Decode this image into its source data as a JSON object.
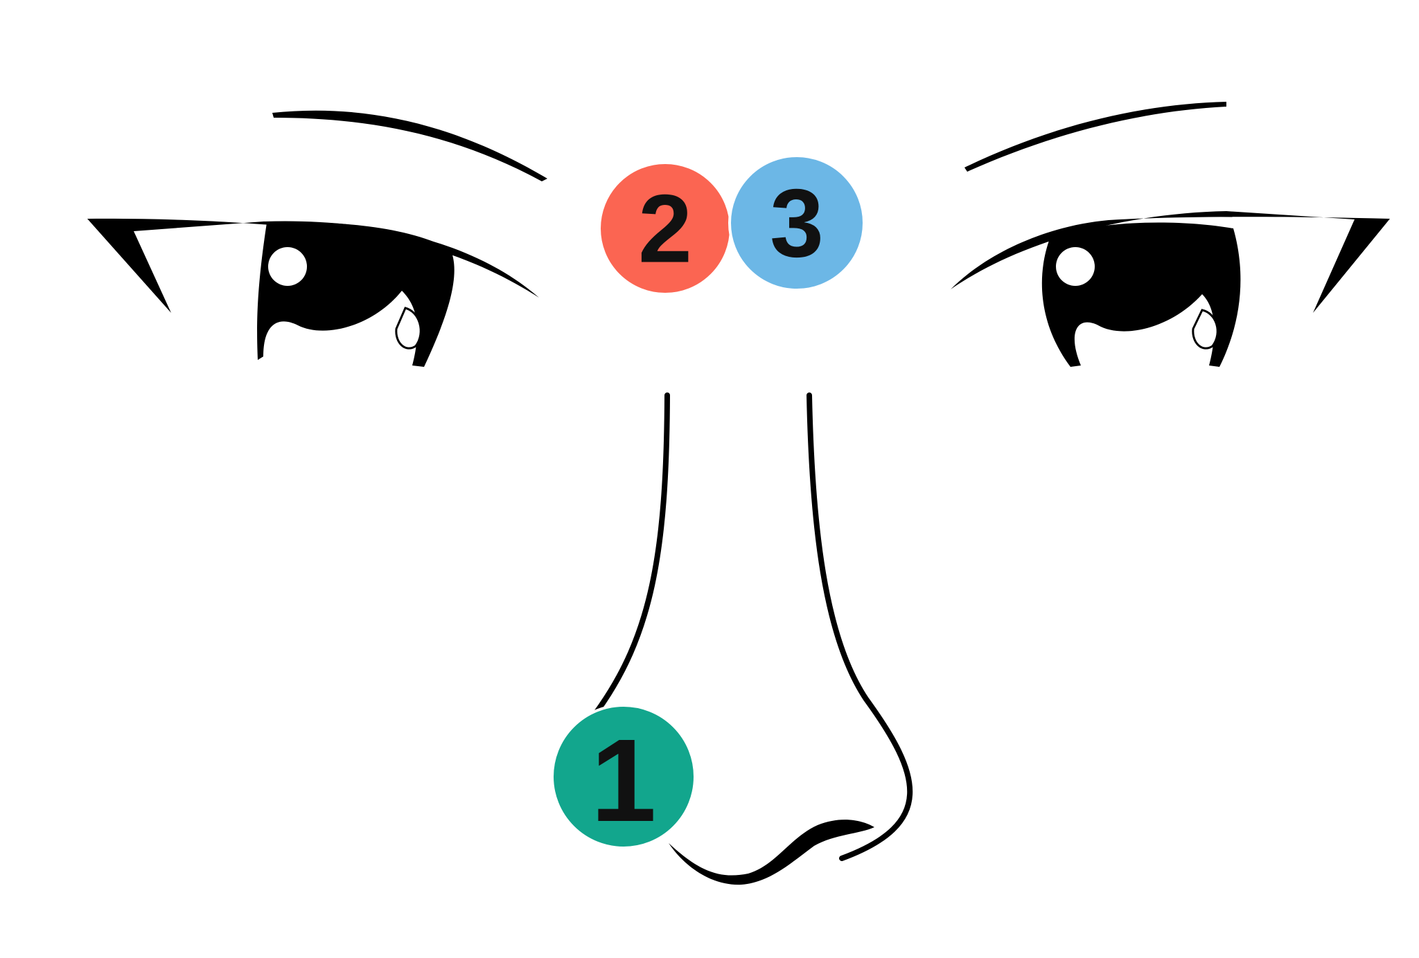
{
  "colors": {
    "line": "#000000",
    "background": "#ffffff",
    "marker_1": "#12a68d",
    "marker_2": "#fb6552",
    "marker_3": "#6cb7e6"
  },
  "markers": [
    {
      "label": "2",
      "color_key": "marker_2"
    },
    {
      "label": "3",
      "color_key": "marker_3"
    },
    {
      "label": "1",
      "color_key": "marker_1"
    }
  ]
}
